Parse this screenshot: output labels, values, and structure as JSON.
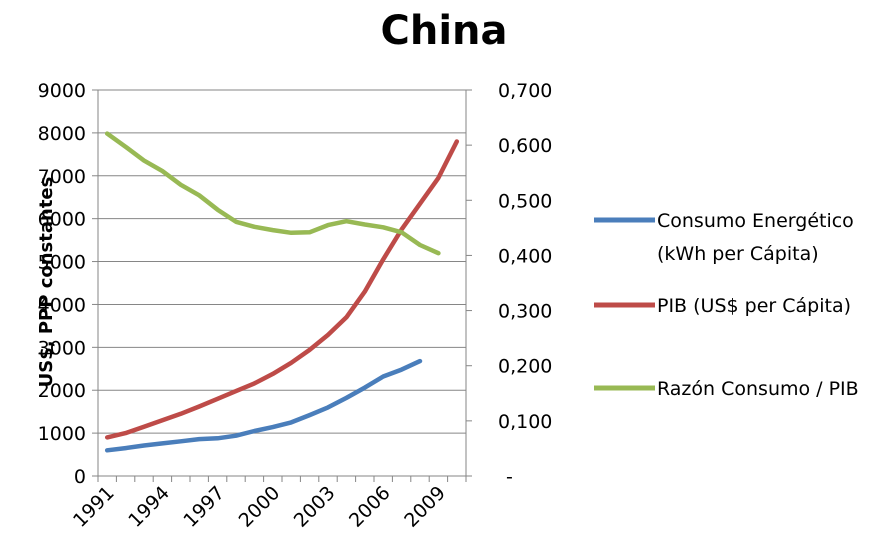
{
  "chart_data": {
    "type": "line",
    "title": "China",
    "xlabel": "",
    "ylabel": "US$, PPP constantes",
    "y2label": "",
    "x": [
      "1991",
      "1992",
      "1993",
      "1994",
      "1995",
      "1996",
      "1997",
      "1998",
      "1999",
      "2000",
      "2001",
      "2002",
      "2003",
      "2004",
      "2005",
      "2006",
      "2007",
      "2008",
      "2009",
      "2010"
    ],
    "x_tick_labels": [
      "1991",
      "1994",
      "1997",
      "2000",
      "2003",
      "2006",
      "2009"
    ],
    "ylim": [
      0,
      9000
    ],
    "y_ticks": [
      "0",
      "1000",
      "2000",
      "3000",
      "4000",
      "5000",
      "6000",
      "7000",
      "8000",
      "9000"
    ],
    "y2lim": [
      0,
      0.7
    ],
    "y2_ticks": [
      "-",
      "0,100",
      "0,200",
      "0,300",
      "0,400",
      "0,500",
      "0,600",
      "0,700"
    ],
    "grid": true,
    "legend_position": "right",
    "series": [
      {
        "name": "Consumo Energético (kWh per Cápita)",
        "legend_lines": [
          "Consumo Energético",
          "(kWh per Cápita)"
        ],
        "color": "#4a7ebb",
        "axis": "left",
        "values": [
          600,
          650,
          710,
          760,
          810,
          860,
          880,
          940,
          1050,
          1140,
          1250,
          1420,
          1600,
          1820,
          2060,
          2320,
          2480,
          2680,
          null,
          null
        ]
      },
      {
        "name": "PIB (US$ per Cápita)",
        "legend_lines": [
          "PIB (US$ per Cápita)"
        ],
        "color": "#be4b48",
        "axis": "left",
        "values": [
          900,
          1000,
          1150,
          1300,
          1450,
          1620,
          1800,
          1980,
          2160,
          2380,
          2640,
          2940,
          3290,
          3700,
          4300,
          5050,
          5750,
          6350,
          6950,
          7800
        ]
      },
      {
        "name": "Razón Consumo / PIB",
        "legend_lines": [
          "Razón Consumo / PIB"
        ],
        "color": "#98b954",
        "axis": "right",
        "values": [
          0.621,
          0.597,
          0.572,
          0.553,
          0.528,
          0.509,
          0.483,
          0.461,
          0.452,
          0.446,
          0.441,
          0.442,
          0.455,
          0.462,
          0.456,
          0.451,
          0.442,
          0.419,
          0.404,
          null
        ]
      }
    ]
  }
}
